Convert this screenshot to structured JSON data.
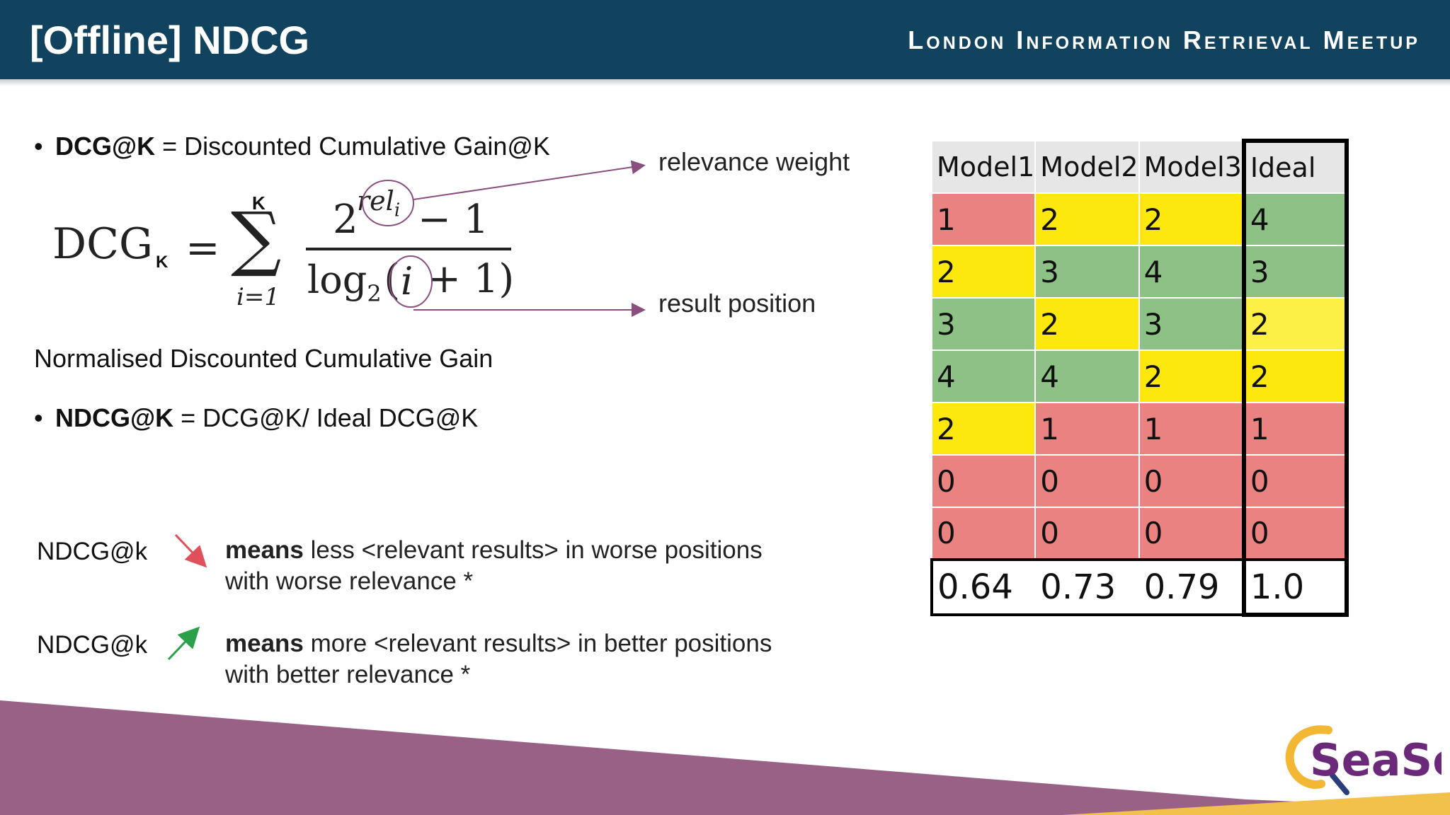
{
  "header": {
    "title": "[Offline] NDCG",
    "meetup": "London Information Retrieval Meetup"
  },
  "content": {
    "bullet1_term": "DCG@K",
    "bullet1_rest": " = Discounted Cumulative Gain@K",
    "formula": {
      "lhs": "DCG",
      "lhs_sub": "K",
      "eq": "=",
      "sum": "∑",
      "sum_top": "K",
      "sum_bottom": "i=1",
      "num_base": "2",
      "num_exp": "rel",
      "num_exp_sub": "i",
      "num_rest": "− 1",
      "den": "log",
      "den_sub": "2",
      "den_rest_open": "(",
      "den_i": "i",
      "den_rest_close": "+ 1)"
    },
    "annotation_relevance": "relevance weight",
    "annotation_position": "result position",
    "ndcg_heading": "Normalised Discounted Cumulative Gain",
    "bullet2_term": "NDCG@K",
    "bullet2_rest": " = DCG@K/ Ideal DCG@K",
    "down_label": "NDCG@k",
    "down_means": "means",
    "down_text1": " less <relevant results> in worse positions",
    "down_text2": "with worse relevance *",
    "up_label": "NDCG@k",
    "up_means": "means",
    "up_text1": " more <relevant results> in better positions",
    "up_text2": "with better relevance *"
  },
  "table": {
    "headers": [
      "Model1",
      "Model2",
      "Model3",
      "Ideal"
    ],
    "rows": [
      [
        "1",
        "2",
        "2",
        "4"
      ],
      [
        "2",
        "3",
        "4",
        "3"
      ],
      [
        "3",
        "2",
        "3",
        "2"
      ],
      [
        "4",
        "4",
        "2",
        "2"
      ],
      [
        "2",
        "1",
        "1",
        "1"
      ],
      [
        "0",
        "0",
        "0",
        "0"
      ],
      [
        "0",
        "0",
        "0",
        "0"
      ]
    ],
    "scores": [
      "0.64",
      "0.73",
      "0.79",
      "1.0"
    ]
  },
  "logo": {
    "text": "SeaSe"
  },
  "colors": {
    "header": "#12435e",
    "red": "#eb8282",
    "yellow": "#fde80e",
    "green": "#8dc185",
    "arrow_down": "#e0505a",
    "arrow_up": "#2aa04a",
    "annot_line": "#8a4f7d",
    "footer_purple": "#9a6186",
    "footer_gold": "#f2c14a"
  }
}
